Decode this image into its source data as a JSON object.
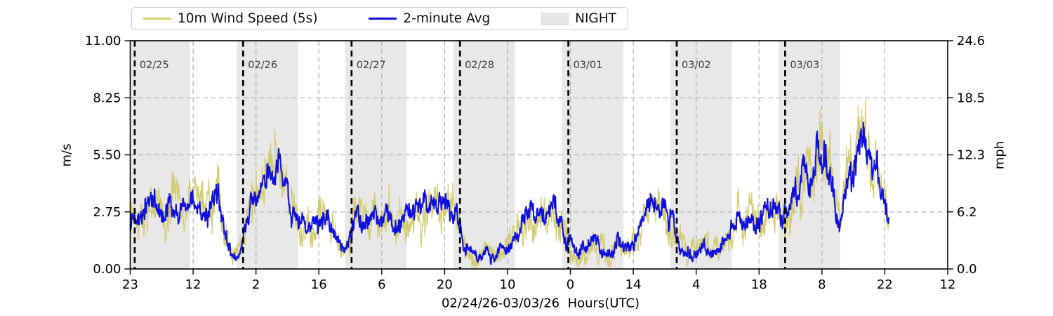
{
  "legend": {
    "items": [
      {
        "label": "10m Wind Speed (5s)",
        "color": "#d4ce74",
        "type": "line"
      },
      {
        "label": "2-minute Avg",
        "color": "#1010dc",
        "type": "line"
      },
      {
        "label": "NIGHT",
        "color": "#e7e7e7",
        "type": "patch"
      }
    ]
  },
  "chart_data": {
    "type": "line",
    "title": "",
    "xlabel": "02/24/26-03/03/26  Hours(UTC)",
    "ylabel_left": "m/s",
    "ylabel_right": "mph",
    "ylim_left": [
      0,
      11.0
    ],
    "ylim_right": [
      0,
      24.6
    ],
    "ytick_values_mps": [
      0,
      2.75,
      5.5,
      8.25,
      11.0
    ],
    "ytick_labels_left": [
      "0.00",
      "2.75",
      "5.50",
      "8.25",
      "11.00"
    ],
    "ytick_labels_right": [
      "0.0",
      "6.2",
      "12.3",
      "18.5",
      "24.6"
    ],
    "xtick_labels": [
      "23",
      "12",
      "2",
      "16",
      "6",
      "20",
      "10",
      "0",
      "14",
      "4",
      "18",
      "8",
      "22",
      "12"
    ],
    "x_span_hours": 181,
    "data_end_hour": 168,
    "grid": true,
    "legend_position": "top",
    "night_label": "NIGHT",
    "night_band_color": "#e8e8e8",
    "grid_color": "#aeaeae",
    "day_line_color": "#000000",
    "day_label_color": "#3d3d3d",
    "day_lines": [
      {
        "t": 1,
        "label": "02/25"
      },
      {
        "t": 25,
        "label": "02/26"
      },
      {
        "t": 49,
        "label": "02/27"
      },
      {
        "t": 73,
        "label": "02/28"
      },
      {
        "t": 97,
        "label": "03/01"
      },
      {
        "t": 121,
        "label": "03/02"
      },
      {
        "t": 145,
        "label": "03/03"
      }
    ],
    "night_bands_hours": [
      [
        0,
        13.2
      ],
      [
        23.6,
        37.2
      ],
      [
        47.6,
        61.2
      ],
      [
        71.6,
        85.2
      ],
      [
        95.6,
        109.2
      ],
      [
        119.6,
        133.2
      ],
      [
        143.6,
        157.2
      ]
    ],
    "series": [
      {
        "name": "10m Wind Speed (5s)",
        "color": "#d2cb6f",
        "step_hours": 0.045,
        "amp_base": 0.5,
        "amp_slope": 0.26,
        "gusts": true,
        "stroke_width": 1.2
      },
      {
        "name": "2-minute Avg",
        "color": "#1010dc",
        "step_hours": 0.07,
        "amp_base": 0.3,
        "amp_slope": 0.17,
        "gusts": false,
        "stroke_width": 2.0
      }
    ],
    "avg_control_points_mps": [
      [
        0,
        2.3
      ],
      [
        2,
        2.9
      ],
      [
        4,
        3.1
      ],
      [
        5,
        3.3
      ],
      [
        6.5,
        2.7
      ],
      [
        8,
        2.6
      ],
      [
        9.5,
        3.1
      ],
      [
        11,
        2.8
      ],
      [
        12.5,
        2.6
      ],
      [
        14,
        3.0
      ],
      [
        15.5,
        2.7
      ],
      [
        17,
        2.9
      ],
      [
        18.5,
        3.1
      ],
      [
        19.5,
        3.9
      ],
      [
        20.5,
        2.6
      ],
      [
        21.5,
        1.4
      ],
      [
        22.5,
        0.8
      ],
      [
        23.5,
        0.6
      ],
      [
        24.5,
        0.9
      ],
      [
        25.5,
        1.9
      ],
      [
        26.5,
        3.0
      ],
      [
        28,
        3.6
      ],
      [
        29.5,
        3.9
      ],
      [
        31,
        4.4
      ],
      [
        32.5,
        5.0
      ],
      [
        33.5,
        4.6
      ],
      [
        34.5,
        3.9
      ],
      [
        35.5,
        3.0
      ],
      [
        36.5,
        2.3
      ],
      [
        38,
        2.1
      ],
      [
        39.5,
        2.3
      ],
      [
        41,
        1.9
      ],
      [
        42.5,
        2.5
      ],
      [
        43.5,
        2.8
      ],
      [
        44.5,
        2.2
      ],
      [
        45.5,
        1.6
      ],
      [
        46.5,
        1.1
      ],
      [
        47.5,
        0.9
      ],
      [
        48.5,
        1.4
      ],
      [
        49.5,
        2.4
      ],
      [
        51,
        2.7
      ],
      [
        52.5,
        2.3
      ],
      [
        54,
        2.5
      ],
      [
        55.5,
        2.3
      ],
      [
        57,
        2.4
      ],
      [
        58.5,
        2.2
      ],
      [
        60,
        2.6
      ],
      [
        61.5,
        2.9
      ],
      [
        63,
        3.1
      ],
      [
        64.5,
        2.8
      ],
      [
        66,
        3.1
      ],
      [
        67.5,
        3.0
      ],
      [
        69,
        3.1
      ],
      [
        70.5,
        2.9
      ],
      [
        72,
        2.6
      ],
      [
        73,
        1.9
      ],
      [
        74,
        1.1
      ],
      [
        75.5,
        0.7
      ],
      [
        77,
        0.6
      ],
      [
        78.5,
        0.8
      ],
      [
        80,
        0.7
      ],
      [
        81.5,
        0.8
      ],
      [
        83,
        1.0
      ],
      [
        84.5,
        1.4
      ],
      [
        86,
        2.0
      ],
      [
        87.5,
        2.4
      ],
      [
        89,
        2.6
      ],
      [
        90.5,
        2.4
      ],
      [
        92,
        2.7
      ],
      [
        93.5,
        2.8
      ],
      [
        95,
        2.5
      ],
      [
        96,
        1.9
      ],
      [
        97,
        1.2
      ],
      [
        98,
        0.9
      ],
      [
        99.5,
        0.7
      ],
      [
        101,
        1.1
      ],
      [
        102.5,
        1.3
      ],
      [
        104,
        1.0
      ],
      [
        105.5,
        0.8
      ],
      [
        107,
        1.1
      ],
      [
        108.5,
        1.5
      ],
      [
        110,
        1.0
      ],
      [
        111.5,
        1.3
      ],
      [
        113,
        2.0
      ],
      [
        114.5,
        2.6
      ],
      [
        116,
        2.9
      ],
      [
        117.5,
        3.1
      ],
      [
        119,
        2.8
      ],
      [
        120,
        2.2
      ],
      [
        121,
        1.5
      ],
      [
        122,
        1.1
      ],
      [
        123.5,
        0.9
      ],
      [
        125,
        0.8
      ],
      [
        126.5,
        1.1
      ],
      [
        128,
        0.9
      ],
      [
        129.5,
        0.9
      ],
      [
        131,
        1.1
      ],
      [
        132.5,
        1.5
      ],
      [
        134,
        2.1
      ],
      [
        135.5,
        2.5
      ],
      [
        137,
        2.7
      ],
      [
        138.5,
        2.5
      ],
      [
        140,
        2.7
      ],
      [
        141.5,
        2.9
      ],
      [
        143,
        3.0
      ],
      [
        144.3,
        2.4
      ],
      [
        145.5,
        2.7
      ],
      [
        147,
        3.4
      ],
      [
        148.5,
        3.9
      ],
      [
        150,
        4.5
      ],
      [
        151.5,
        5.1
      ],
      [
        153,
        5.6
      ],
      [
        154,
        5.2
      ],
      [
        155.5,
        4.0
      ],
      [
        156.7,
        2.4
      ],
      [
        158,
        3.4
      ],
      [
        159.5,
        4.4
      ],
      [
        161,
        5.4
      ],
      [
        162.2,
        6.0
      ],
      [
        163.5,
        5.5
      ],
      [
        164.8,
        4.8
      ],
      [
        166,
        4.2
      ],
      [
        167,
        3.4
      ],
      [
        168,
        2.8
      ]
    ]
  }
}
